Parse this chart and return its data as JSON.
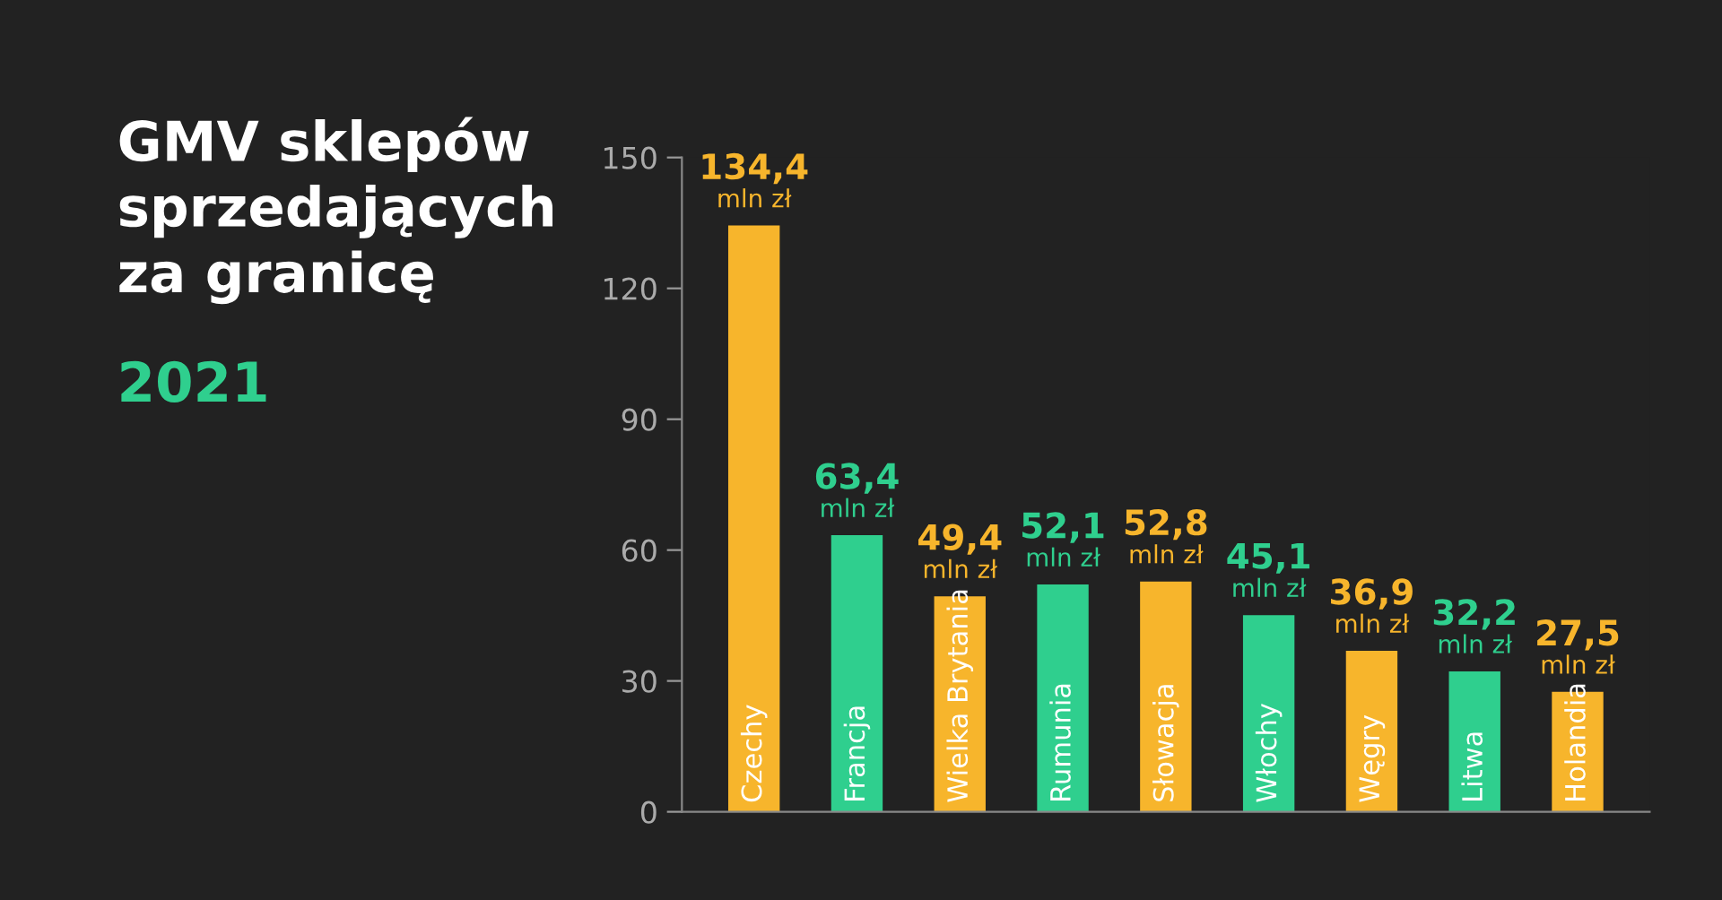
{
  "chart_data": {
    "type": "bar",
    "title": "GMV sklepów\nsprzedających\nza granicę",
    "subtitle": "2021",
    "categories": [
      "Czechy",
      "Francja",
      "Wielka Brytania",
      "Rumunia",
      "Słowacja",
      "Włochy",
      "Węgry",
      "Litwa",
      "Holandia"
    ],
    "values": [
      134.4,
      63.4,
      49.4,
      52.1,
      52.8,
      45.1,
      36.9,
      32.2,
      27.5
    ],
    "colors": [
      "#f7b52c",
      "#2fcf8e",
      "#f7b52c",
      "#2fcf8e",
      "#f7b52c",
      "#2fcf8e",
      "#f7b52c",
      "#2fcf8e",
      "#f7b52c"
    ],
    "value_labels": [
      "134,4\nmln zł",
      "63,4\nmln zł",
      "49,4\nmln zł",
      "52,1\nmln zł",
      "52,8\nmln zł",
      "45,1\nmln zł",
      "36,9\nmln zł",
      "32,2\nmln zł",
      "27,5\nmln zł"
    ],
    "ylim": [
      0,
      150
    ],
    "yticks": [
      0,
      30,
      60,
      90,
      120,
      150
    ],
    "grid": false,
    "legend": false
  }
}
